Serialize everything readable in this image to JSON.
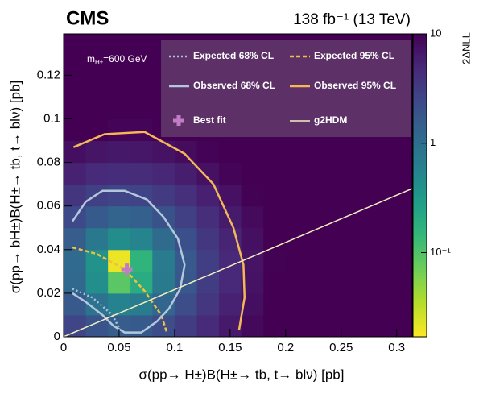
{
  "chart_data": {
    "type": "heatmap",
    "title": "CMS",
    "subtitle": "138 fb⁻¹ (13 TeV)",
    "x_label": "σ(pp→ H±)B(H±→ tb, t→ blν) [pb]",
    "y_label": "σ(pp→ bH±)B(H±→ tb, t→ blν) [pb]",
    "colorbar_label": "2ΔNLL",
    "mass_label": [
      "m",
      "H±",
      "=600 GeV"
    ],
    "xlim": [
      0,
      0.314
    ],
    "ylim": [
      0,
      0.139
    ],
    "xticks": [
      0,
      0.05,
      0.1,
      0.15,
      0.2,
      0.25,
      0.3
    ],
    "yticks": [
      0,
      0.02,
      0.04,
      0.06,
      0.08,
      0.1,
      0.12
    ],
    "clim": [
      0.017,
      10
    ],
    "cticks": [
      {
        "value": 0.1,
        "label": "10⁻¹"
      },
      1,
      10
    ],
    "clog": true,
    "colormap": "viridis",
    "heatmap": {
      "xbins": [
        0,
        0.02,
        0.04,
        0.06,
        0.08,
        0.1,
        0.12,
        0.14,
        0.16,
        0.18,
        0.2,
        0.22,
        0.24,
        0.26,
        0.28,
        0.3,
        0.32
      ],
      "ybins": [
        0,
        0.01,
        0.02,
        0.03,
        0.04,
        0.05,
        0.06,
        0.07,
        0.08,
        0.09,
        0.1,
        0.11,
        0.12,
        0.13,
        0.14
      ],
      "values": [
        [
          2.63,
          1.87,
          1.54,
          1.65,
          2.19,
          3.17,
          4.57,
          6.41,
          8.68,
          10,
          10,
          10,
          10,
          10,
          10,
          10
        ],
        [
          1.68,
          0.92,
          0.59,
          0.7,
          1.24,
          2.22,
          3.62,
          5.46,
          7.73,
          10,
          10,
          10,
          10,
          10,
          10,
          10
        ],
        [
          1.18,
          0.42,
          0.09,
          0.2,
          0.74,
          1.72,
          3.12,
          4.96,
          7.23,
          9.94,
          10,
          10,
          10,
          10,
          10,
          10
        ],
        [
          1.14,
          0.38,
          0.02,
          0.16,
          0.7,
          1.68,
          3.08,
          4.92,
          7.19,
          9.9,
          10,
          10,
          10,
          10,
          10,
          10
        ],
        [
          1.54,
          0.78,
          0.45,
          0.56,
          1.1,
          2.08,
          3.48,
          5.32,
          7.59,
          10,
          10,
          10,
          10,
          10,
          10,
          10
        ],
        [
          2.41,
          1.65,
          1.32,
          1.43,
          1.97,
          2.95,
          4.35,
          6.19,
          8.46,
          10,
          10,
          10,
          10,
          10,
          10,
          10
        ],
        [
          3.72,
          2.96,
          2.63,
          2.74,
          3.28,
          4.26,
          5.66,
          7.5,
          9.77,
          10,
          10,
          10,
          10,
          10,
          10,
          10
        ],
        [
          5.49,
          4.73,
          4.4,
          4.51,
          5.05,
          6.03,
          7.43,
          9.27,
          10,
          10,
          10,
          10,
          10,
          10,
          10,
          10
        ],
        [
          7.71,
          6.95,
          6.62,
          6.73,
          7.27,
          8.25,
          9.65,
          10,
          10,
          10,
          10,
          10,
          10,
          10,
          10,
          10
        ],
        [
          10,
          10,
          9.3,
          9.41,
          9.95,
          10,
          10,
          10,
          10,
          10,
          10,
          10,
          10,
          10,
          10,
          10
        ],
        [
          10,
          10,
          10,
          10,
          10,
          10,
          10,
          10,
          10,
          10,
          10,
          10,
          10,
          10,
          10,
          10
        ],
        [
          10,
          10,
          10,
          10,
          10,
          10,
          10,
          10,
          10,
          10,
          10,
          10,
          10,
          10,
          10,
          10
        ],
        [
          10,
          10,
          10,
          10,
          10,
          10,
          10,
          10,
          10,
          10,
          10,
          10,
          10,
          10,
          10,
          10
        ],
        [
          10,
          10,
          10,
          10,
          10,
          10,
          10,
          10,
          10,
          10,
          10,
          10,
          10,
          10,
          10,
          10
        ]
      ]
    },
    "series": [
      {
        "name": "Expected 68% CL",
        "color": "#a8c4dc",
        "dash": "2,3",
        "x": [
          0.008,
          0.026,
          0.044,
          0.051
        ],
        "y": [
          0.022,
          0.018,
          0.01,
          0.003
        ]
      },
      {
        "name": "Expected 95% CL",
        "color": "#f0c040",
        "dash": "5,3",
        "x": [
          0.008,
          0.03,
          0.055,
          0.073,
          0.088,
          0.093
        ],
        "y": [
          0.041,
          0.038,
          0.031,
          0.021,
          0.01,
          0.002
        ]
      },
      {
        "name": "Observed 68% CL",
        "color": "#b4c8dc",
        "dash": "none",
        "x": [
          0.008,
          0.02,
          0.035,
          0.055,
          0.075,
          0.09,
          0.103,
          0.109,
          0.105,
          0.095,
          0.084,
          0.07,
          0.055,
          0.045,
          0.035,
          0.02,
          0.008
        ],
        "y": [
          0.053,
          0.062,
          0.067,
          0.067,
          0.063,
          0.055,
          0.045,
          0.033,
          0.022,
          0.013,
          0.007,
          0.002,
          0.002,
          0.005,
          0.01,
          0.016,
          0.02
        ]
      },
      {
        "name": "Observed 95% CL",
        "color": "#f5b857",
        "dash": "none",
        "x": [
          0.009,
          0.037,
          0.073,
          0.109,
          0.135,
          0.153,
          0.162,
          0.163,
          0.158
        ],
        "y": [
          0.087,
          0.093,
          0.094,
          0.084,
          0.07,
          0.05,
          0.033,
          0.018,
          0.003
        ]
      },
      {
        "name": "g2HDM",
        "color": "#f3efc0",
        "dash": "none",
        "width": 1.5,
        "x": [
          0,
          0.314
        ],
        "y": [
          0,
          0.068
        ]
      }
    ],
    "best_fit": {
      "name": "Best fit",
      "color": "#c27bc6",
      "x": 0.057,
      "y": 0.031
    }
  }
}
